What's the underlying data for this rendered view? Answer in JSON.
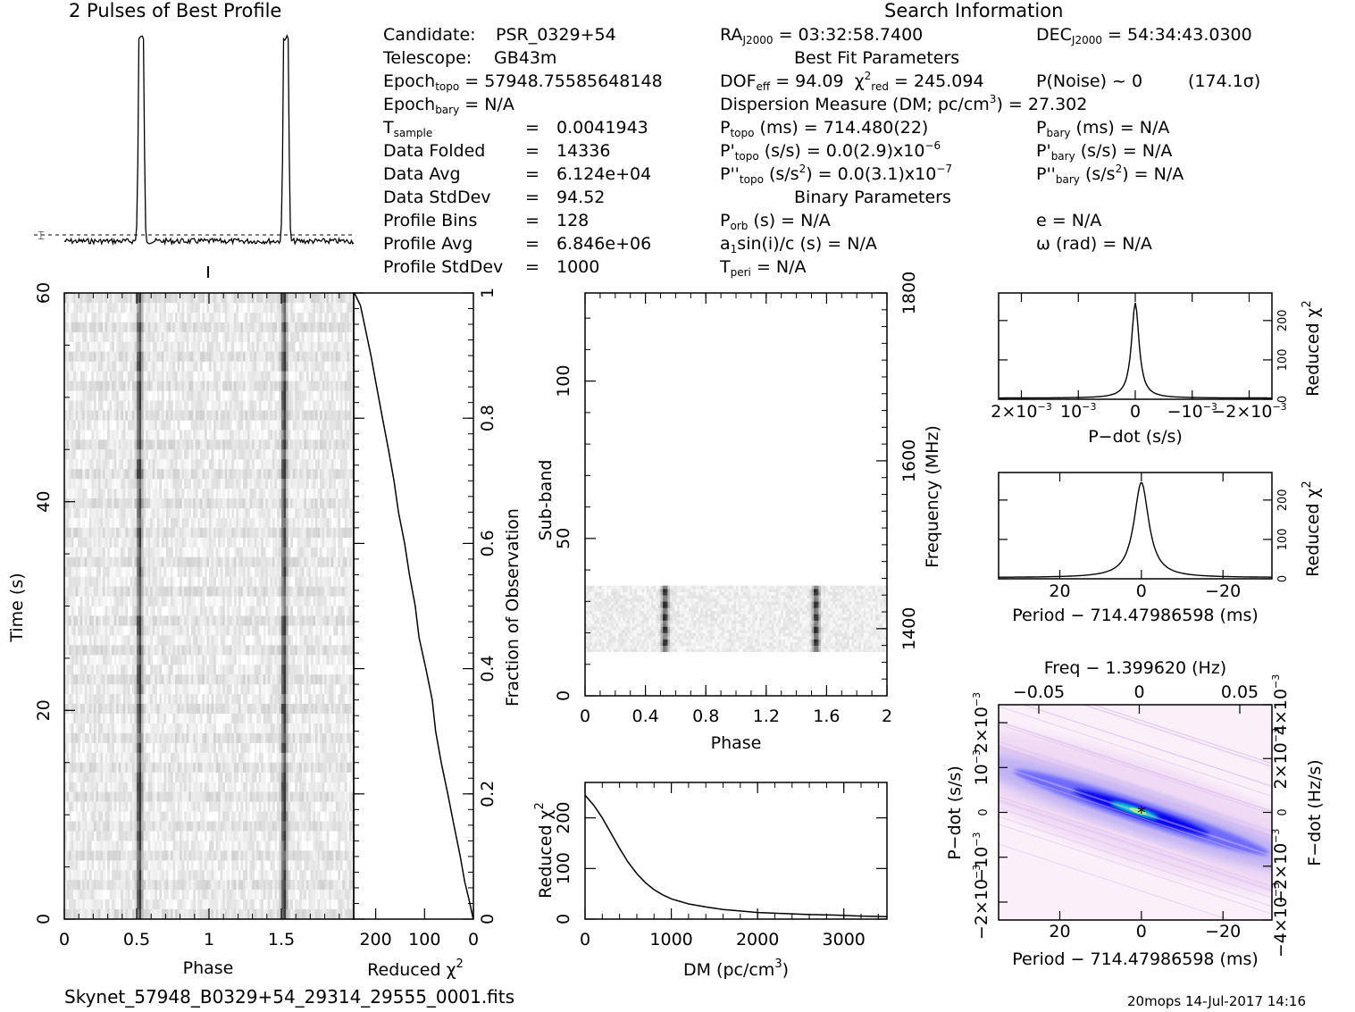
{
  "header": {
    "profile_title": "2 Pulses of Best Profile",
    "search_title": "Search Information",
    "best_fit_title": "Best Fit Parameters",
    "binary_title": "Binary Parameters",
    "filename": "Skynet_57948_B0329+54_29314_29555_0001.fits",
    "stamp": "20mops 14-Jul-2017 14:16"
  },
  "info": {
    "candidate_label": "Candidate:",
    "candidate": "PSR_0329+54",
    "telescope_label": "Telescope:",
    "telescope": "GB43m",
    "epoch_topo_label": "Epoch",
    "epoch_topo_sub": "topo",
    "epoch_topo": "= 57948.75585648148",
    "epoch_bary_label": "Epoch",
    "epoch_bary_sub": "bary",
    "epoch_bary": "= N/A",
    "tsample_label": "T",
    "tsample_sub": "sample",
    "tsample": "0.0041943",
    "data_folded_label": "Data Folded",
    "data_folded": "14336",
    "data_avg_label": "Data Avg",
    "data_avg": "6.124e+04",
    "data_stddev_label": "Data StdDev",
    "data_stddev": "94.52",
    "profile_bins_label": "Profile Bins",
    "profile_bins": "128",
    "profile_avg_label": "Profile Avg",
    "profile_avg": "6.846e+06",
    "profile_stddev_label": "Profile StdDev",
    "profile_stddev": "1000",
    "ra_label": "RA",
    "ra_sub": "J2000",
    "ra": "= 03:32:58.7400",
    "dec_label": "DEC",
    "dec_sub": "J2000",
    "dec": "= 54:34:43.0300",
    "dof_label": "DOF",
    "dof_sub": "eff",
    "dof": "= 94.09",
    "chi_label": "χ",
    "chi_sup": "2",
    "chi_sub": "red",
    "chi": "= 245.094",
    "pnoise": "P(Noise) ~ 0",
    "sigma": "(174.1σ)",
    "dm_label": "Dispersion Measure (DM; pc/cm",
    "dm_sup": "3",
    "dm": ") = 27.302",
    "ptopo_label": "P",
    "ptopo_sub": "topo",
    "ptopo": "(ms) =  714.480(22)",
    "pdtopo_label": "P'",
    "pdtopo_sub": "topo",
    "pdtopo": "(s/s) = 0.0(2.9)x10",
    "pdtopo_exp": "−6",
    "pddtopo_label": "P''",
    "pddtopo_sub": "topo",
    "pddtopo_a": "(s/s",
    "pddtopo_sup": "2",
    "pddtopo": ") = 0.0(3.1)x10",
    "pddtopo_exp": "−7",
    "pbary_label": "P",
    "pbary_sub": "bary",
    "pbary": "(ms) = N/A",
    "pdbary_label": "P'",
    "pdbary_sub": "bary",
    "pdbary": "(s/s) = N/A",
    "pddbary_label": "P''",
    "pddbary_sub": "bary",
    "pddbary_a": "(s/s",
    "pddbary_sup": "2",
    "pddbary": ") = N/A",
    "porb_label": "P",
    "porb_sub": "orb",
    "porb": "(s) = N/A",
    "a1_label": "a",
    "a1_sub": "1",
    "a1": "sin(i)/c (s) = N/A",
    "tperi_label": "T",
    "tperi_sub": "peri",
    "tperi": "= N/A",
    "e": "e = N/A",
    "omega": "ω (rad) = N/A",
    "eq": "="
  },
  "colors": {
    "ink": "#000000",
    "grid_bg": "#ffffff",
    "pp_low": "#f7e8f5",
    "pp_mid": "#7f7fff",
    "pp_high": "#00ffcc"
  },
  "chart_data": [
    {
      "type": "line",
      "id": "profile",
      "title": "2 Pulses of Best Profile",
      "x_range": [
        0,
        2
      ],
      "peaks_phase": [
        0.54,
        1.54
      ],
      "peak_value_rel": 1.0,
      "baseline_rel": 0.05
    },
    {
      "type": "heatmap",
      "id": "time-phase",
      "xlabel": "Phase",
      "ylabel": "Time (s)",
      "x_ticks": [
        "0",
        "0.5",
        "1",
        "1.5"
      ],
      "x_tick_values": [
        0,
        0.5,
        1,
        1.5
      ],
      "y_ticks": [
        "0",
        "20",
        "40",
        "60"
      ],
      "y_tick_values": [
        0,
        20,
        40,
        60
      ],
      "xlim": [
        0,
        2
      ],
      "ylim": [
        0,
        60
      ],
      "pulse_phase": [
        0.52,
        1.52
      ]
    },
    {
      "type": "line",
      "id": "time-chi2",
      "xlabel": "Reduced",
      "xlabel_sup": "2",
      "xlabel_chi": "χ",
      "ylabel": "Fraction of Observation",
      "x_ticks": [
        "200",
        "100",
        "0"
      ],
      "x_tick_values": [
        200,
        100,
        0
      ],
      "y_ticks": [
        "0",
        "0.2",
        "0.4",
        "0.6",
        "0.8",
        "1"
      ],
      "y_tick_values": [
        0,
        0.2,
        0.4,
        0.6,
        0.8,
        1
      ],
      "xlim": [
        245,
        0
      ],
      "ylim": [
        0,
        1
      ],
      "points": [
        [
          0,
          0
        ],
        [
          10,
          0.03
        ],
        [
          18,
          0.06
        ],
        [
          28,
          0.1
        ],
        [
          40,
          0.15
        ],
        [
          52,
          0.2
        ],
        [
          64,
          0.25
        ],
        [
          76,
          0.3
        ],
        [
          86,
          0.35
        ],
        [
          97,
          0.4
        ],
        [
          110,
          0.45
        ],
        [
          120,
          0.5
        ],
        [
          131,
          0.55
        ],
        [
          142,
          0.6
        ],
        [
          152,
          0.65
        ],
        [
          163,
          0.7
        ],
        [
          175,
          0.75
        ],
        [
          186,
          0.8
        ],
        [
          197,
          0.85
        ],
        [
          209,
          0.9
        ],
        [
          222,
          0.95
        ],
        [
          232,
          0.98
        ],
        [
          245,
          1.0
        ]
      ]
    },
    {
      "type": "heatmap",
      "id": "subband-phase",
      "xlabel": "Phase",
      "ylabel": "Sub-band",
      "y2label": "Frequency (MHz)",
      "x_ticks": [
        "0",
        "0.4",
        "0.8",
        "1.2",
        "1.6",
        "2"
      ],
      "x_tick_values": [
        0,
        0.4,
        0.8,
        1.2,
        1.6,
        2
      ],
      "y_ticks": [
        "0",
        "50",
        "100"
      ],
      "y_tick_values": [
        0,
        50,
        100
      ],
      "y2_ticks": [
        "1400",
        "1600",
        "1800"
      ],
      "y2_tick_values": [
        1400,
        1600,
        1800
      ],
      "xlim": [
        0,
        2
      ],
      "ylim": [
        0,
        128
      ],
      "y2lim": [
        1320,
        1800
      ],
      "band_range": [
        14,
        35
      ],
      "pulse_phase": [
        0.53,
        1.53
      ]
    },
    {
      "type": "line",
      "id": "dm-chi2",
      "xlabel": "DM (pc/cm",
      "xlabel_sup": "3",
      "xlabel_end": ")",
      "ylabel": "Reduced",
      "ylabel_chi": "χ",
      "ylabel_sup": "2",
      "x_ticks": [
        "0",
        "1000",
        "2000",
        "3000"
      ],
      "x_tick_values": [
        0,
        1000,
        2000,
        3000
      ],
      "y_ticks": [
        "0",
        "100",
        "200"
      ],
      "y_tick_values": [
        0,
        100,
        200
      ],
      "xlim": [
        0,
        3500
      ],
      "ylim": [
        0,
        270
      ],
      "points": [
        [
          0,
          245
        ],
        [
          100,
          225
        ],
        [
          200,
          200
        ],
        [
          300,
          170
        ],
        [
          400,
          140
        ],
        [
          500,
          112
        ],
        [
          600,
          90
        ],
        [
          700,
          72
        ],
        [
          800,
          58
        ],
        [
          900,
          48
        ],
        [
          1000,
          40
        ],
        [
          1200,
          30
        ],
        [
          1400,
          24
        ],
        [
          1600,
          19
        ],
        [
          1800,
          16
        ],
        [
          2000,
          13
        ],
        [
          2300,
          11
        ],
        [
          2600,
          9
        ],
        [
          2900,
          8
        ],
        [
          3200,
          6
        ],
        [
          3500,
          5
        ]
      ]
    },
    {
      "type": "line",
      "id": "pdot-chi2",
      "xlabel": "P−dot (s/s)",
      "ylabel": "Reduced",
      "ylabel_chi": "χ",
      "ylabel_sup": "2",
      "x_ticks": [
        "2×10",
        "10",
        "0",
        "−10",
        "−2×10"
      ],
      "x_tick_exp": "−3",
      "x_tick_values": [
        0.002,
        0.001,
        0,
        -0.001,
        -0.002
      ],
      "y_ticks": [
        "0",
        "100",
        "200"
      ],
      "y_tick_values": [
        0,
        100,
        200
      ],
      "xlim": [
        0.0024,
        -0.0024
      ],
      "ylim": [
        0,
        270
      ],
      "peak_x": 0,
      "peak_y": 245,
      "baseline": 3
    },
    {
      "type": "line",
      "id": "period-chi2",
      "xlabel": "Period − 714.47986598 (ms)",
      "ylabel": "Reduced",
      "ylabel_chi": "χ",
      "ylabel_sup": "2",
      "x_ticks": [
        "20",
        "0",
        "−20"
      ],
      "x_tick_values": [
        20,
        0,
        -20
      ],
      "y_ticks": [
        "0",
        "100",
        "200"
      ],
      "y_tick_values": [
        0,
        100,
        200
      ],
      "xlim": [
        35,
        -32
      ],
      "ylim": [
        0,
        270
      ],
      "peak_x": 0,
      "peak_y": 245,
      "baseline": 3
    },
    {
      "type": "heatmap",
      "id": "pp-plane",
      "title": "Freq − 1.399620 (Hz)",
      "xlabel": "Period − 714.47986598 (ms)",
      "ylabel": "P−dot (s/s)",
      "y2label": "F−dot (Hz/s)",
      "x_ticks": [
        "20",
        "0",
        "−20"
      ],
      "x_tick_values": [
        20,
        0,
        -20
      ],
      "top_ticks": [
        "−0.05",
        "0",
        "0.05"
      ],
      "top_tick_values": [
        -0.05,
        0,
        0.05
      ],
      "y_ticks": [
        "2×10",
        "10",
        "0",
        "−10",
        "−2×10"
      ],
      "y_tick_exp": "−3",
      "y2_ticks": [
        "−4×10",
        "−2×10",
        "0",
        "2×10",
        "4×10"
      ],
      "y2_tick_exp": "−3",
      "xlim": [
        35,
        -32
      ],
      "ylim": [
        0.0024,
        -0.0024
      ],
      "best_x": 0,
      "best_y": 0
    }
  ]
}
